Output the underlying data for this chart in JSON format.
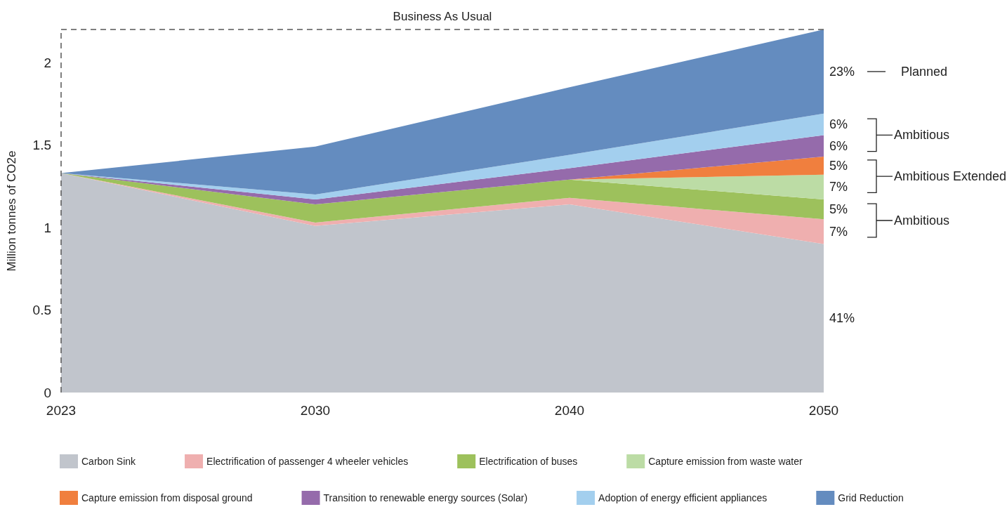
{
  "chart_data": {
    "type": "area",
    "stacked": true,
    "ylabel": "Million tonnes of CO2e",
    "categories": [
      "2023",
      "2030",
      "2040",
      "2050"
    ],
    "series": [
      {
        "name": "Carbon Sink",
        "color": "#c1c5cc",
        "values": [
          1.33,
          1.01,
          1.14,
          0.9
        ]
      },
      {
        "name": "Electrification of passenger 4 wheeler vehicles",
        "color": "#efafaf",
        "values": [
          0,
          0.02,
          0.04,
          0.15
        ]
      },
      {
        "name": "Electrification of buses",
        "color": "#9dc15c",
        "values": [
          0,
          0.11,
          0.11,
          0.12
        ]
      },
      {
        "name": "Capture emission from waste water",
        "color": "#bcdca5",
        "values": [
          0,
          0,
          0,
          0.15
        ]
      },
      {
        "name": "Capture emission from disposal ground",
        "color": "#f07f3e",
        "values": [
          0,
          0,
          0,
          0.11
        ]
      },
      {
        "name": "Transition to renewable energy sources (Solar)",
        "color": "#956bab",
        "values": [
          0,
          0.03,
          0.07,
          0.13
        ]
      },
      {
        "name": "Adoption of energy efficient appliances",
        "color": "#a3cfee",
        "values": [
          0,
          0.03,
          0.08,
          0.13
        ]
      },
      {
        "name": "Grid Reduction",
        "color": "#648cbf",
        "values": [
          0,
          0.29,
          0.41,
          0.51
        ]
      }
    ],
    "ylim": [
      0,
      2.2
    ],
    "yticks": [
      0,
      0.5,
      1,
      1.5,
      2
    ],
    "ref_lines": [
      {
        "axis": "x",
        "value": "2023",
        "line_style": "dashed",
        "color": "#555555"
      },
      {
        "axis": "y",
        "value": 2.2,
        "label": "Business As Usual",
        "line_style": "dashed",
        "color": "#555555"
      }
    ],
    "annotations": [
      {
        "text": "23%",
        "x": "2050",
        "y": 1.945
      },
      "Planned",
      {
        "text": "6%",
        "x": "2050",
        "y": 1.625
      },
      {
        "text": "6%",
        "x": "2050",
        "y": 1.495
      },
      "Ambitious",
      {
        "text": "5%",
        "x": "2050",
        "y": 1.375
      },
      {
        "text": "7%",
        "x": "2050",
        "y": 1.245
      },
      "Ambitious Extended",
      {
        "text": "5%",
        "x": "2050",
        "y": 1.11
      },
      {
        "text": "7%",
        "x": "2050",
        "y": 0.975
      },
      "Ambitious",
      {
        "text": "41%",
        "x": "2050",
        "y": 0.45
      }
    ],
    "legend": "bottom",
    "grid": false
  }
}
